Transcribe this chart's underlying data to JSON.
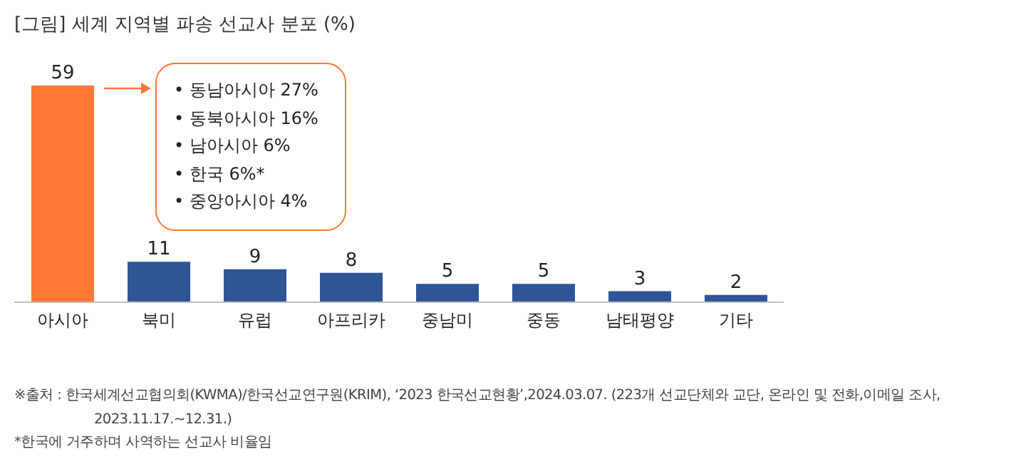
{
  "chart_data": {
    "type": "bar",
    "title": "[그림] 세계 지역별 파송 선교사 분포 (%)",
    "categories": [
      "아시아",
      "북미",
      "유럽",
      "아프리카",
      "중남미",
      "중동",
      "남태평양",
      "기타"
    ],
    "values": [
      59,
      11,
      9,
      8,
      5,
      5,
      3,
      2
    ],
    "colors": [
      "#ff7733",
      "#2f5597",
      "#2f5597",
      "#2f5597",
      "#2f5597",
      "#2f5597",
      "#2f5597",
      "#2f5597"
    ],
    "data_labels": true,
    "annotations": [
      "• 동남아시아 27%",
      "• 동북아시아 16%",
      "• 남아시아 6%",
      "• 한국 6%*",
      "• 중앙아시아 4%",
      "※출처 : 한국세계선교협의회(KWMA)/한국선교연구원(KRIM), ‘2023 한국선교현황’,2024.03.07. (223개 선교단체와 교단, 온라인 및 전화,이메일 조사, 2023.11.17.~12.31.)",
      "*한국에 거주하며 사역하는 선교사 비율임"
    ]
  }
}
